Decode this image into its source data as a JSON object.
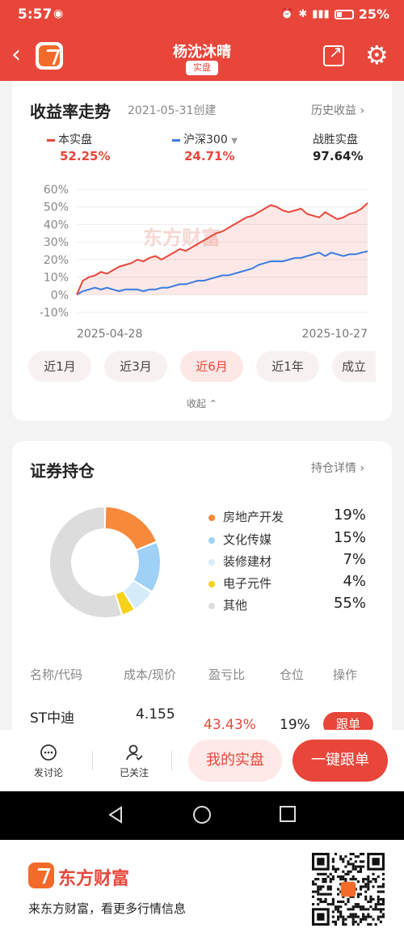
{
  "status": {
    "time": "5:57",
    "battery": "25%",
    "icons": [
      "eye-icon",
      "alarm-icon",
      "bluetooth-icon",
      "vibrate-icon",
      "signal-icon",
      "battery-icon"
    ]
  },
  "header": {
    "title": "杨沈沐晴",
    "tag": "实盘",
    "back": "back-icon",
    "share": "share-icon",
    "settings": "gear-icon"
  },
  "trend": {
    "title": "收益率走势",
    "created": "2021-05-31创建",
    "history_link": "历史收益",
    "legend": [
      {
        "name": "本实盘",
        "value": "52.25%",
        "color": "#e8463a"
      },
      {
        "name": "沪深300",
        "value": "24.71%",
        "color": "#3b7be0"
      }
    ],
    "win": {
      "label": "战胜实盘",
      "value": "97.64%"
    },
    "watermark": "东方财富",
    "tabs": [
      "近1月",
      "近3月",
      "近6月",
      "近1年",
      "成立"
    ],
    "active_tab": 2,
    "collapse": "收起"
  },
  "chart_data": {
    "type": "line",
    "x_start": "2025-04-28",
    "x_end": "2025-10-27",
    "y_ticks": [
      "60%",
      "50%",
      "40%",
      "30%",
      "20%",
      "10%",
      "0%",
      "-10%"
    ],
    "ylim": [
      -10,
      60
    ],
    "series": [
      {
        "name": "本实盘",
        "color": "#e8463a",
        "values": [
          0,
          8,
          10,
          11,
          13,
          12,
          14,
          16,
          17,
          18,
          20,
          19,
          21,
          22,
          20,
          22,
          24,
          26,
          25,
          27,
          29,
          31,
          33,
          35,
          36,
          38,
          40,
          42,
          44,
          45,
          47,
          49,
          51,
          50,
          48,
          47,
          48,
          49,
          46,
          45,
          44,
          47,
          45,
          43,
          44,
          46,
          47,
          49,
          52.25
        ]
      },
      {
        "name": "沪深300",
        "color": "#3b7be0",
        "values": [
          0,
          2,
          3,
          4,
          3,
          4,
          3,
          2,
          3,
          3,
          3,
          2,
          3,
          3,
          4,
          4,
          5,
          6,
          6,
          7,
          8,
          8,
          9,
          10,
          11,
          11,
          12,
          13,
          14,
          15,
          17,
          18,
          19,
          19,
          19,
          20,
          21,
          21,
          22,
          23,
          24,
          22,
          24,
          23,
          22,
          23,
          23,
          24,
          24.71
        ]
      }
    ]
  },
  "holdings": {
    "title": "证券持仓",
    "detail_link": "持仓详情",
    "categories": [
      {
        "name": "房地产开发",
        "pct": "19%",
        "value": 19,
        "color": "#f7893b"
      },
      {
        "name": "文化传媒",
        "pct": "15%",
        "value": 15,
        "color": "#9fd0f6"
      },
      {
        "name": "装修建材",
        "pct": "7%",
        "value": 7,
        "color": "#d6ebfa"
      },
      {
        "name": "电子元件",
        "pct": "4%",
        "value": 4,
        "color": "#f6d21a"
      },
      {
        "name": "其他",
        "pct": "55%",
        "value": 55,
        "color": "#dcdcdc"
      }
    ],
    "columns": [
      "名称/代码",
      "成本/现价",
      "盈亏比",
      "仓位",
      "操作"
    ],
    "rows": [
      {
        "name": "ST中迪",
        "cost": "4.155",
        "ratio": "43.43%",
        "position": "19%",
        "action": "跟单"
      }
    ]
  },
  "actions": {
    "discuss": "发讨论",
    "followed": "已关注",
    "my_portfolio": "我的实盘",
    "one_click_follow": "一键跟单"
  },
  "promo": {
    "brand": "东方财富",
    "text": "来东方财富，看更多行情信息"
  }
}
